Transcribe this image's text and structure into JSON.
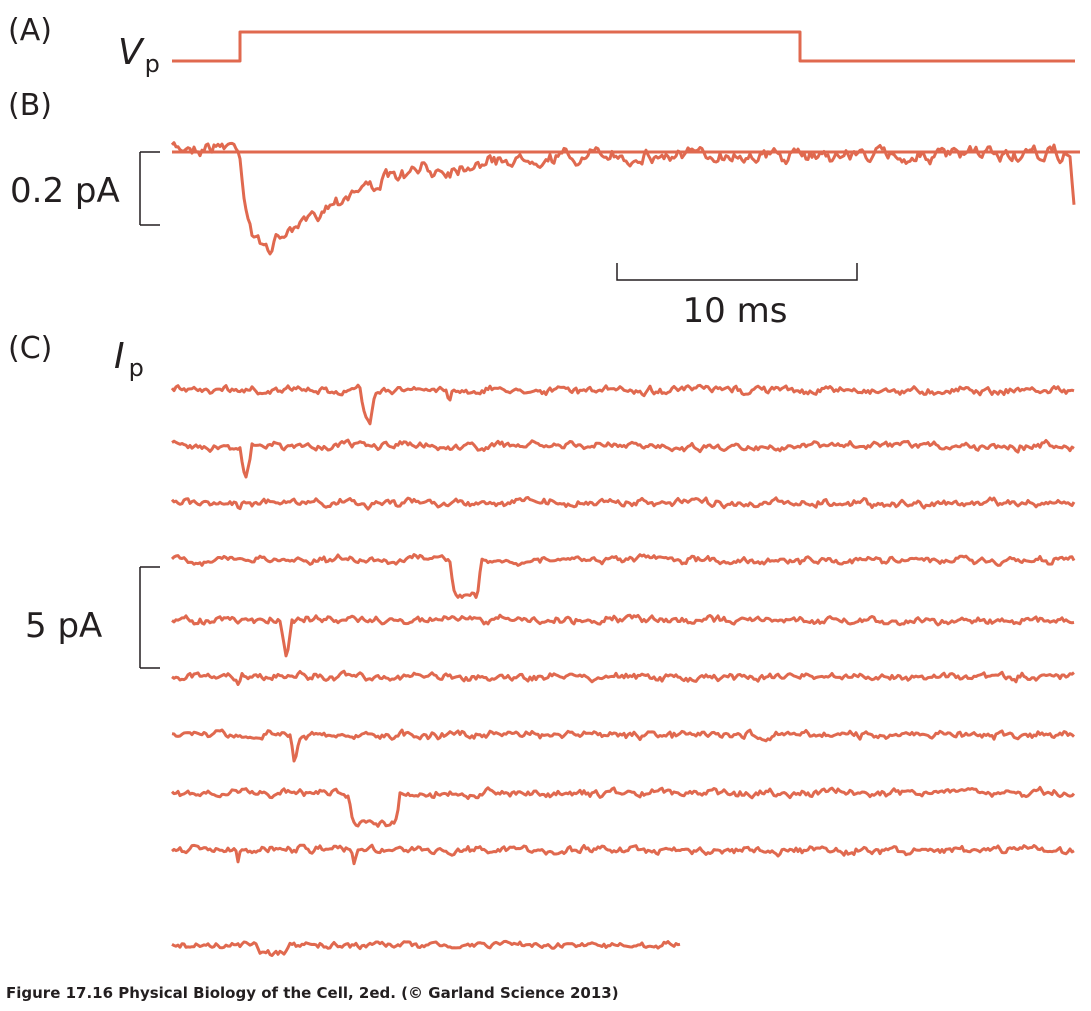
{
  "panels": [
    {
      "label": "(A)"
    },
    {
      "label": "(B)"
    },
    {
      "label": "(C)"
    }
  ],
  "signals": {
    "voltage": {
      "symbol": "V",
      "subscript": "p"
    },
    "current": {
      "symbol": "I",
      "subscript": "p"
    }
  },
  "scale_bars": {
    "panel_b_current": "0.2 pA",
    "time": "10 ms",
    "panel_c_current": "5 pA"
  },
  "caption": "Figure 17.16  Physical Biology of the Cell, 2ed. (© Garland Science 2013)"
}
